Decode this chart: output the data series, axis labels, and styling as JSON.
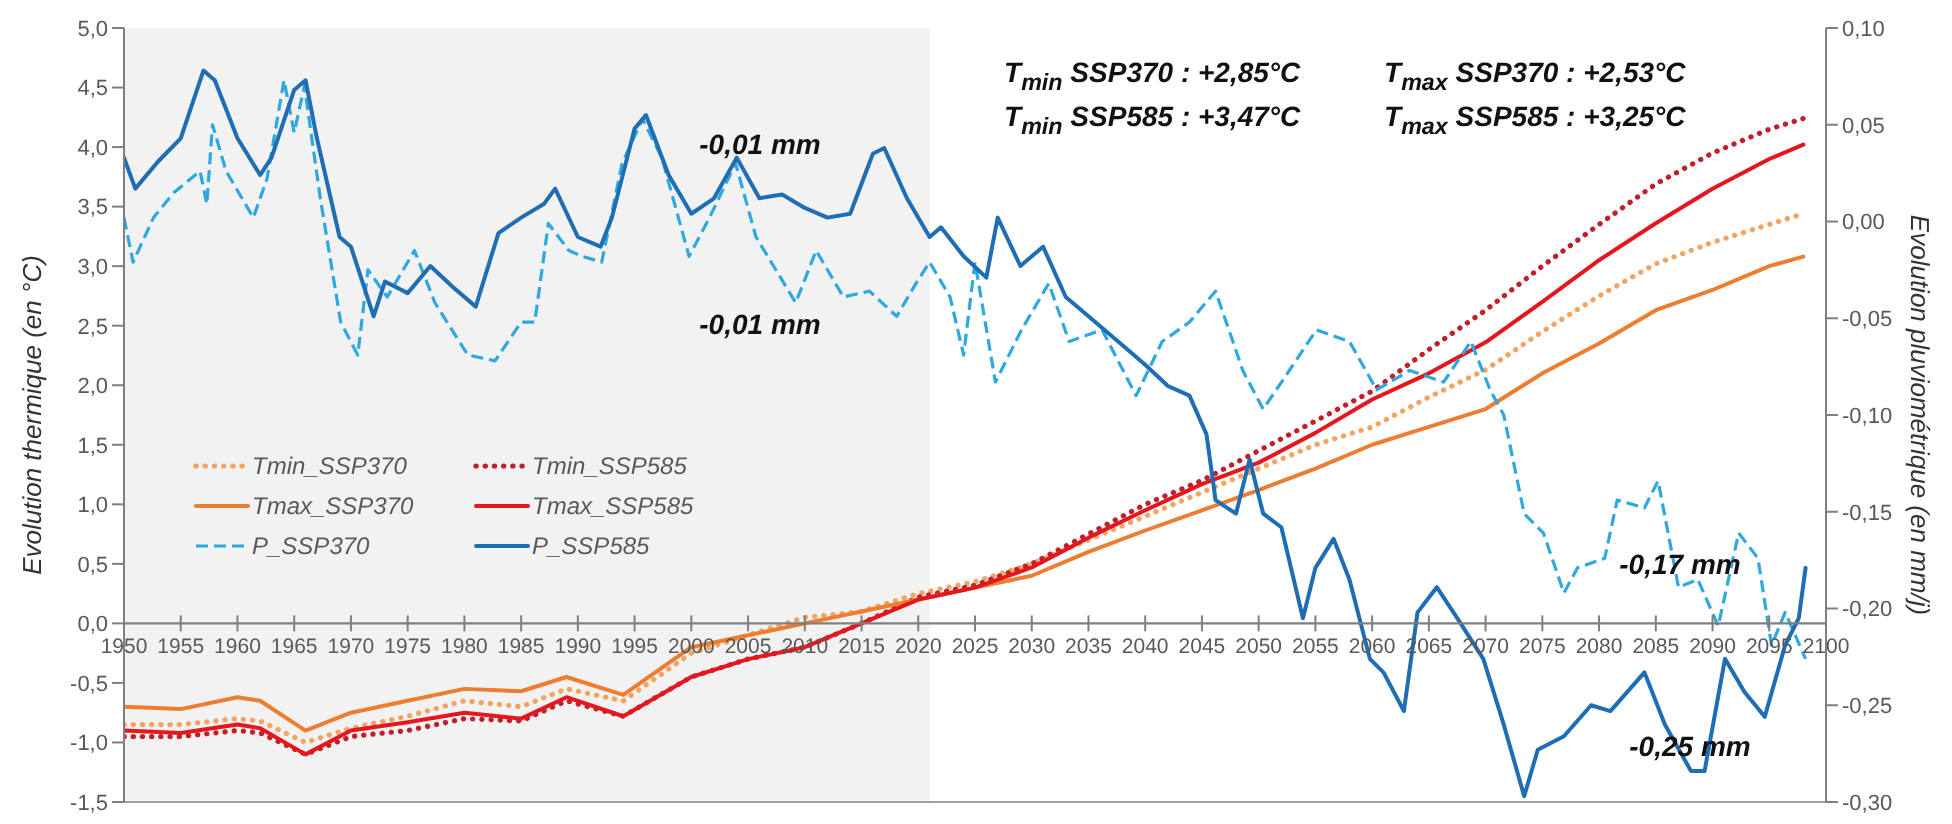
{
  "chart_data": {
    "type": "line",
    "xlabel": null,
    "ylabel": "Evolution thermique (en °C)",
    "y2label": "Evolution pluviométrique (en mm/j)",
    "xlim": [
      1950,
      2100
    ],
    "xticks": [
      1950,
      1955,
      1960,
      1965,
      1970,
      1975,
      1980,
      1985,
      1990,
      1995,
      2000,
      2005,
      2010,
      2015,
      2020,
      2025,
      2030,
      2035,
      2040,
      2045,
      2050,
      2055,
      2060,
      2065,
      2070,
      2075,
      2080,
      2085,
      2090,
      2095,
      2100
    ],
    "ylim": [
      -1.5,
      5
    ],
    "yticks": [
      {
        "value": -1.5,
        "label": "-1,5"
      },
      {
        "value": -1,
        "label": "-1,0"
      },
      {
        "value": -0.5,
        "label": "-0,5"
      },
      {
        "value": 0,
        "label": "0,0"
      },
      {
        "value": 0.5,
        "label": "0,5"
      },
      {
        "value": 1,
        "label": "1,0"
      },
      {
        "value": 1.5,
        "label": "1,5"
      },
      {
        "value": 2,
        "label": "2,0"
      },
      {
        "value": 2.5,
        "label": "2,5"
      },
      {
        "value": 3,
        "label": "3,0"
      },
      {
        "value": 3.5,
        "label": "3,5"
      },
      {
        "value": 4,
        "label": "4,0"
      },
      {
        "value": 4.5,
        "label": "4,5"
      },
      {
        "value": 5,
        "label": "5,0"
      }
    ],
    "y2lim": [
      -0.3,
      0.1
    ],
    "y2ticks": [
      {
        "value": -0.3,
        "label": "-0,30"
      },
      {
        "value": -0.25,
        "label": "-0,25"
      },
      {
        "value": -0.2,
        "label": "-0,20"
      },
      {
        "value": -0.15,
        "label": "-0,15"
      },
      {
        "value": -0.1,
        "label": "-0,10"
      },
      {
        "value": -0.05,
        "label": "-0,05"
      },
      {
        "value": 0,
        "label": "0,00"
      },
      {
        "value": 0.05,
        "label": "0,05"
      },
      {
        "value": 0.1,
        "label": "0,10"
      }
    ],
    "legend": "bottom left",
    "bands": [
      {
        "axis": "x",
        "from": 1950,
        "to": 2021,
        "color": "#f2f2f2"
      }
    ],
    "annotations": [
      "T$_{min}$ SSP370 : +2,85°C",
      "T$_{max}$ SSP370 : +2,53°C",
      "T$_{min}$ SSP585 : +3,47°C",
      "T$_{max}$ SSP585 : +3,25°C",
      "-0,01 mm",
      "-0,01 mm",
      "-0,17 mm",
      "-0,25 mm"
    ],
    "series": [
      {
        "name": "Tmin_SSP370",
        "color": "#f4a460",
        "line_style": "dotted",
        "x": [
          1950,
          1955,
          1960,
          1962,
          1966,
          1970,
          1975,
          1980,
          1985,
          1989,
          1994,
          2000,
          2005,
          2010,
          2015,
          2020,
          2025,
          2030,
          2035,
          2040,
          2045,
          2050,
          2055,
          2060,
          2065,
          2070,
          2075,
          2080,
          2085,
          2090,
          2095,
          2098
        ],
        "values": [
          -0.85,
          -0.85,
          -0.8,
          -0.82,
          -1.0,
          -0.88,
          -0.78,
          -0.65,
          -0.7,
          -0.55,
          -0.65,
          -0.25,
          -0.1,
          0.05,
          0.1,
          0.25,
          0.35,
          0.5,
          0.7,
          0.9,
          1.1,
          1.3,
          1.5,
          1.65,
          1.9,
          2.13,
          2.45,
          2.75,
          3.02,
          3.2,
          3.35,
          3.44
        ]
      },
      {
        "name": "Tmin_SSP585",
        "color": "#c0202a",
        "line_style": "dotted",
        "x": [
          1950,
          1955,
          1960,
          1962,
          1966,
          1970,
          1975,
          1980,
          1985,
          1989,
          1994,
          2000,
          2005,
          2010,
          2015,
          2020,
          2025,
          2030,
          2035,
          2040,
          2045,
          2050,
          2055,
          2060,
          2065,
          2070,
          2075,
          2080,
          2085,
          2090,
          2095,
          2098
        ],
        "values": [
          -0.95,
          -0.95,
          -0.9,
          -0.92,
          -1.1,
          -0.95,
          -0.9,
          -0.8,
          -0.82,
          -0.65,
          -0.78,
          -0.45,
          -0.3,
          -0.2,
          0.0,
          0.22,
          0.32,
          0.5,
          0.75,
          1.0,
          1.2,
          1.45,
          1.7,
          1.95,
          2.3,
          2.63,
          3.0,
          3.35,
          3.69,
          3.95,
          4.15,
          4.24
        ]
      },
      {
        "name": "Tmax_SSP370",
        "color": "#ed7d31",
        "line_style": "solid",
        "x": [
          1950,
          1955,
          1960,
          1962,
          1966,
          1970,
          1975,
          1980,
          1985,
          1989,
          1994,
          2000,
          2005,
          2010,
          2015,
          2020,
          2025,
          2030,
          2035,
          2040,
          2045,
          2050,
          2055,
          2060,
          2065,
          2070,
          2075,
          2080,
          2085,
          2090,
          2095,
          2098
        ],
        "values": [
          -0.7,
          -0.72,
          -0.62,
          -0.65,
          -0.9,
          -0.75,
          -0.65,
          -0.55,
          -0.57,
          -0.45,
          -0.6,
          -0.2,
          -0.1,
          0.0,
          0.1,
          0.2,
          0.3,
          0.4,
          0.6,
          0.78,
          0.95,
          1.12,
          1.3,
          1.5,
          1.65,
          1.8,
          2.1,
          2.35,
          2.63,
          2.8,
          3.0,
          3.08
        ]
      },
      {
        "name": "Tmax_SSP585",
        "color": "#e3171d",
        "line_style": "solid",
        "x": [
          1950,
          1955,
          1960,
          1962,
          1966,
          1970,
          1975,
          1980,
          1985,
          1989,
          1994,
          2000,
          2005,
          2010,
          2015,
          2020,
          2025,
          2030,
          2035,
          2040,
          2045,
          2050,
          2055,
          2060,
          2065,
          2070,
          2075,
          2080,
          2085,
          2090,
          2095,
          2098
        ],
        "values": [
          -0.9,
          -0.92,
          -0.85,
          -0.88,
          -1.1,
          -0.9,
          -0.83,
          -0.75,
          -0.8,
          -0.62,
          -0.78,
          -0.45,
          -0.3,
          -0.2,
          0.0,
          0.2,
          0.3,
          0.47,
          0.72,
          0.95,
          1.17,
          1.35,
          1.6,
          1.88,
          2.1,
          2.36,
          2.7,
          3.05,
          3.36,
          3.65,
          3.9,
          4.02
        ]
      },
      {
        "name": "P_SSP370",
        "color": "#2ea8de",
        "line_style": "dashed",
        "axis": "y2",
        "x": [
          1950,
          1950.8,
          1952.6,
          1954.4,
          1956.7,
          1957.3,
          1957.8,
          1959,
          1961.4,
          1962.6,
          1964.1,
          1965,
          1965.9,
          1967.3,
          1969.1,
          1970.6,
          1971.5,
          1973.2,
          1975.6,
          1977.4,
          1980.3,
          1982.7,
          1985,
          1986.2,
          1987.4,
          1989.2,
          1990.4,
          1992.1,
          1993.9,
          1995.7,
          1997.4,
          1999.8,
          2001.6,
          2003.9,
          2005.7,
          2009.2,
          2011,
          2013.4,
          2015.7,
          2018.1,
          2019.8,
          2021,
          2022.8,
          2024,
          2025,
          2026.8,
          2029.1,
          2031.5,
          2033.3,
          2036.2,
          2039.2,
          2041.5,
          2043.9,
          2046.2,
          2048.6,
          2050.4,
          2052.7,
          2055.1,
          2058,
          2060.4,
          2063.3,
          2066.3,
          2068.7,
          2070.4,
          2071.6,
          2073.4,
          2075.1,
          2076.9,
          2078.1,
          2080.5,
          2081.6,
          2084,
          2085.2,
          2087,
          2088.7,
          2090.5,
          2092.3,
          2094,
          2095.2,
          2096.4,
          2098.2
        ],
        "values": [
          0.002,
          -0.021,
          0.002,
          0.015,
          0.026,
          0.009,
          0.05,
          0.026,
          0.002,
          0.022,
          0.073,
          0.046,
          0.07,
          0.012,
          -0.052,
          -0.069,
          -0.025,
          -0.039,
          -0.015,
          -0.042,
          -0.069,
          -0.072,
          -0.052,
          -0.052,
          -0.001,
          -0.015,
          -0.018,
          -0.021,
          0.03,
          0.053,
          0.033,
          -0.018,
          0.002,
          0.03,
          -0.008,
          -0.042,
          -0.015,
          -0.039,
          -0.036,
          -0.049,
          -0.032,
          -0.021,
          -0.039,
          -0.069,
          -0.021,
          -0.083,
          -0.056,
          -0.032,
          -0.062,
          -0.056,
          -0.09,
          -0.062,
          -0.052,
          -0.036,
          -0.077,
          -0.097,
          -0.077,
          -0.056,
          -0.062,
          -0.087,
          -0.077,
          -0.083,
          -0.062,
          -0.087,
          -0.1,
          -0.151,
          -0.161,
          -0.192,
          -0.179,
          -0.174,
          -0.144,
          -0.148,
          -0.134,
          -0.189,
          -0.185,
          -0.209,
          -0.161,
          -0.174,
          -0.219,
          -0.202,
          -0.226
        ]
      },
      {
        "name": "P_SSP585",
        "color": "#1f6db3",
        "line_style": "solid",
        "axis": "y2",
        "x": [
          1950,
          1951,
          1953,
          1955,
          1957,
          1958,
          1960,
          1962,
          1963,
          1965,
          1966,
          1967,
          1969,
          1970,
          1972,
          1973,
          1975,
          1977,
          1979,
          1981,
          1983,
          1985,
          1987,
          1988,
          1990,
          1992,
          1993,
          1995,
          1996,
          1998,
          2000,
          2002,
          2004,
          2006,
          2008,
          2010,
          2012,
          2014,
          2016,
          2017,
          2019,
          2021,
          2022,
          2024,
          2026,
          2027,
          2029,
          2031,
          2033,
          2035,
          2038,
          2040,
          2042,
          2043.9,
          2045.4,
          2046.2,
          2048,
          2049.2,
          2050.4,
          2052,
          2053.9,
          2055,
          2056.6,
          2058,
          2059.8,
          2061,
          2062.8,
          2064,
          2065.7,
          2067.5,
          2069.8,
          2071.6,
          2073.4,
          2074.6,
          2076.9,
          2079.3,
          2081,
          2084,
          2085.8,
          2088.1,
          2089.3,
          2091.1,
          2092.8,
          2094.6,
          2096.4,
          2097.6,
          2098.2
        ],
        "values": [
          0.033,
          0.017,
          0.031,
          0.043,
          0.078,
          0.073,
          0.043,
          0.024,
          0.033,
          0.068,
          0.073,
          0.043,
          -0.008,
          -0.013,
          -0.049,
          -0.031,
          -0.037,
          -0.023,
          -0.034,
          -0.044,
          -0.006,
          0.002,
          0.009,
          0.017,
          -0.008,
          -0.013,
          0.002,
          0.048,
          0.055,
          0.024,
          0.004,
          0.012,
          0.033,
          0.012,
          0.014,
          0.007,
          0.002,
          0.004,
          0.035,
          0.038,
          0.012,
          -0.008,
          -0.003,
          -0.018,
          -0.029,
          0.002,
          -0.023,
          -0.013,
          -0.039,
          -0.049,
          -0.064,
          -0.074,
          -0.085,
          -0.09,
          -0.11,
          -0.144,
          -0.151,
          -0.123,
          -0.151,
          -0.158,
          -0.205,
          -0.179,
          -0.164,
          -0.185,
          -0.226,
          -0.233,
          -0.253,
          -0.202,
          -0.189,
          -0.205,
          -0.226,
          -0.26,
          -0.297,
          -0.273,
          -0.266,
          -0.25,
          -0.253,
          -0.233,
          -0.26,
          -0.284,
          -0.284,
          -0.226,
          -0.243,
          -0.256,
          -0.219,
          -0.205,
          -0.179
        ]
      }
    ]
  }
}
